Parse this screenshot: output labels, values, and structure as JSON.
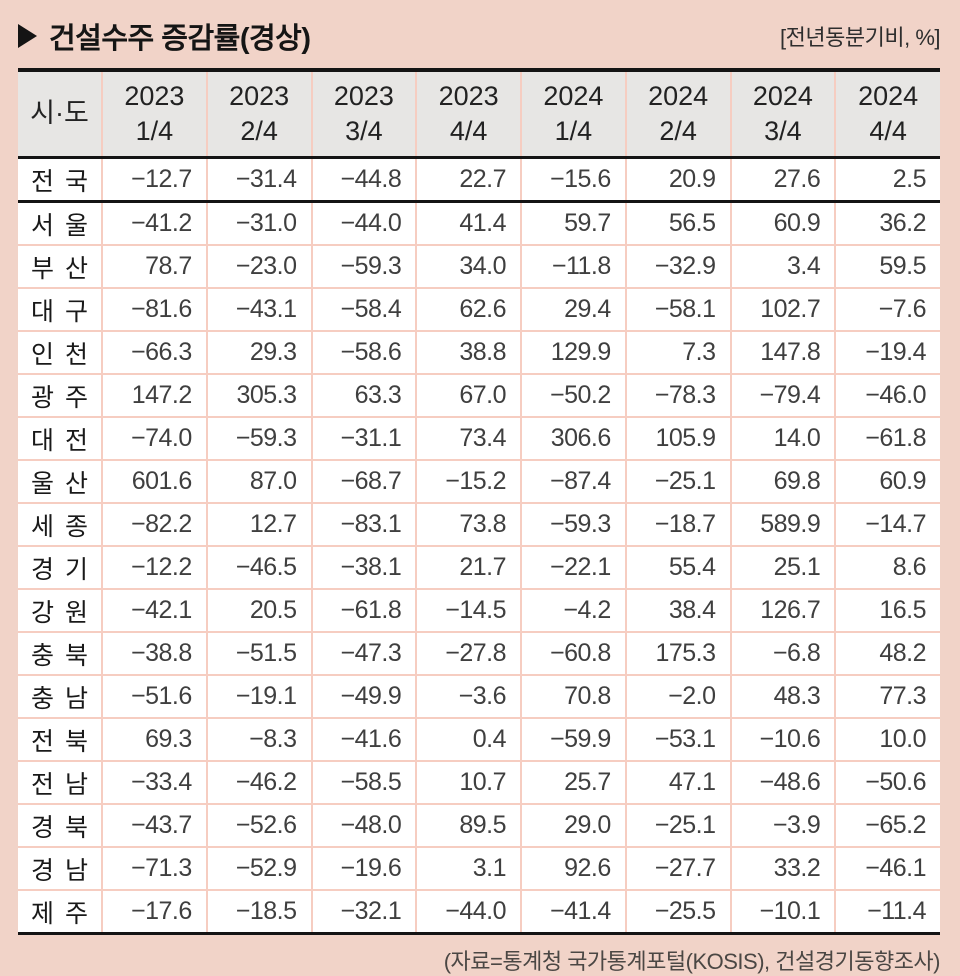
{
  "header": {
    "title": "건설수주 증감률(경상)",
    "unit_note": "[전년동분기비, %]",
    "icons": {
      "title_arrow": "filled-right-triangle"
    }
  },
  "table": {
    "corner_label": "시·도",
    "columns": [
      {
        "year": "2023",
        "quarter": "1/4"
      },
      {
        "year": "2023",
        "quarter": "2/4"
      },
      {
        "year": "2023",
        "quarter": "3/4"
      },
      {
        "year": "2023",
        "quarter": "4/4"
      },
      {
        "year": "2024",
        "quarter": "1/4"
      },
      {
        "year": "2024",
        "quarter": "2/4"
      },
      {
        "year": "2024",
        "quarter": "3/4"
      },
      {
        "year": "2024",
        "quarter": "4/4"
      }
    ],
    "rows": [
      {
        "region": "전국",
        "values": [
          "−12.7",
          "−31.4",
          "−44.8",
          "22.7",
          "−15.6",
          "20.9",
          "27.6",
          "2.5"
        ]
      },
      {
        "region": "서울",
        "values": [
          "−41.2",
          "−31.0",
          "−44.0",
          "41.4",
          "59.7",
          "56.5",
          "60.9",
          "36.2"
        ]
      },
      {
        "region": "부산",
        "values": [
          "78.7",
          "−23.0",
          "−59.3",
          "34.0",
          "−11.8",
          "−32.9",
          "3.4",
          "59.5"
        ]
      },
      {
        "region": "대구",
        "values": [
          "−81.6",
          "−43.1",
          "−58.4",
          "62.6",
          "29.4",
          "−58.1",
          "102.7",
          "−7.6"
        ]
      },
      {
        "region": "인천",
        "values": [
          "−66.3",
          "29.3",
          "−58.6",
          "38.8",
          "129.9",
          "7.3",
          "147.8",
          "−19.4"
        ]
      },
      {
        "region": "광주",
        "values": [
          "147.2",
          "305.3",
          "63.3",
          "67.0",
          "−50.2",
          "−78.3",
          "−79.4",
          "−46.0"
        ]
      },
      {
        "region": "대전",
        "values": [
          "−74.0",
          "−59.3",
          "−31.1",
          "73.4",
          "306.6",
          "105.9",
          "14.0",
          "−61.8"
        ]
      },
      {
        "region": "울산",
        "values": [
          "601.6",
          "87.0",
          "−68.7",
          "−15.2",
          "−87.4",
          "−25.1",
          "69.8",
          "60.9"
        ]
      },
      {
        "region": "세종",
        "values": [
          "−82.2",
          "12.7",
          "−83.1",
          "73.8",
          "−59.3",
          "−18.7",
          "589.9",
          "−14.7"
        ]
      },
      {
        "region": "경기",
        "values": [
          "−12.2",
          "−46.5",
          "−38.1",
          "21.7",
          "−22.1",
          "55.4",
          "25.1",
          "8.6"
        ]
      },
      {
        "region": "강원",
        "values": [
          "−42.1",
          "20.5",
          "−61.8",
          "−14.5",
          "−4.2",
          "38.4",
          "126.7",
          "16.5"
        ]
      },
      {
        "region": "충북",
        "values": [
          "−38.8",
          "−51.5",
          "−47.3",
          "−27.8",
          "−60.8",
          "175.3",
          "−6.8",
          "48.2"
        ]
      },
      {
        "region": "충남",
        "values": [
          "−51.6",
          "−19.1",
          "−49.9",
          "−3.6",
          "70.8",
          "−2.0",
          "48.3",
          "77.3"
        ]
      },
      {
        "region": "전북",
        "values": [
          "69.3",
          "−8.3",
          "−41.6",
          "0.4",
          "−59.9",
          "−53.1",
          "−10.6",
          "10.0"
        ]
      },
      {
        "region": "전남",
        "values": [
          "−33.4",
          "−46.2",
          "−58.5",
          "10.7",
          "25.7",
          "47.1",
          "−48.6",
          "−50.6"
        ]
      },
      {
        "region": "경북",
        "values": [
          "−43.7",
          "−52.6",
          "−48.0",
          "89.5",
          "29.0",
          "−25.1",
          "−3.9",
          "−65.2"
        ]
      },
      {
        "region": "경남",
        "values": [
          "−71.3",
          "−52.9",
          "−19.6",
          "3.1",
          "92.6",
          "−27.7",
          "33.2",
          "−46.1"
        ]
      },
      {
        "region": "제주",
        "values": [
          "−17.6",
          "−18.5",
          "−32.1",
          "−44.0",
          "−41.4",
          "−25.5",
          "−10.1",
          "−11.4"
        ]
      }
    ]
  },
  "footer": {
    "source": "(자료=통계청 국가통계포털(KOSIS), 건설경기동향조사)"
  },
  "colors": {
    "page_background": "#f1d3c8",
    "header_band": "#e7e6e4",
    "gridline_pink": "#f6cdc1",
    "rule_black": "#141414",
    "number_text": "#3f3f3f",
    "region_text": "#191919"
  },
  "chart_data": {
    "type": "table",
    "title": "건설수주 증감률(경상)",
    "unit": "전년동분기비, %",
    "categories": [
      "2023 1/4",
      "2023 2/4",
      "2023 3/4",
      "2023 4/4",
      "2024 1/4",
      "2024 2/4",
      "2024 3/4",
      "2024 4/4"
    ],
    "series": [
      {
        "name": "전국",
        "values": [
          -12.7,
          -31.4,
          -44.8,
          22.7,
          -15.6,
          20.9,
          27.6,
          2.5
        ]
      },
      {
        "name": "서울",
        "values": [
          -41.2,
          -31.0,
          -44.0,
          41.4,
          59.7,
          56.5,
          60.9,
          36.2
        ]
      },
      {
        "name": "부산",
        "values": [
          78.7,
          -23.0,
          -59.3,
          34.0,
          -11.8,
          -32.9,
          3.4,
          59.5
        ]
      },
      {
        "name": "대구",
        "values": [
          -81.6,
          -43.1,
          -58.4,
          62.6,
          29.4,
          -58.1,
          102.7,
          -7.6
        ]
      },
      {
        "name": "인천",
        "values": [
          -66.3,
          29.3,
          -58.6,
          38.8,
          129.9,
          7.3,
          147.8,
          -19.4
        ]
      },
      {
        "name": "광주",
        "values": [
          147.2,
          305.3,
          63.3,
          67.0,
          -50.2,
          -78.3,
          -79.4,
          -46.0
        ]
      },
      {
        "name": "대전",
        "values": [
          -74.0,
          -59.3,
          -31.1,
          73.4,
          306.6,
          105.9,
          14.0,
          -61.8
        ]
      },
      {
        "name": "울산",
        "values": [
          601.6,
          87.0,
          -68.7,
          -15.2,
          -87.4,
          -25.1,
          69.8,
          60.9
        ]
      },
      {
        "name": "세종",
        "values": [
          -82.2,
          12.7,
          -83.1,
          73.8,
          -59.3,
          -18.7,
          589.9,
          -14.7
        ]
      },
      {
        "name": "경기",
        "values": [
          -12.2,
          -46.5,
          -38.1,
          21.7,
          -22.1,
          55.4,
          25.1,
          8.6
        ]
      },
      {
        "name": "강원",
        "values": [
          -42.1,
          20.5,
          -61.8,
          -14.5,
          -4.2,
          38.4,
          126.7,
          16.5
        ]
      },
      {
        "name": "충북",
        "values": [
          -38.8,
          -51.5,
          -47.3,
          -27.8,
          -60.8,
          175.3,
          -6.8,
          48.2
        ]
      },
      {
        "name": "충남",
        "values": [
          -51.6,
          -19.1,
          -49.9,
          -3.6,
          70.8,
          -2.0,
          48.3,
          77.3
        ]
      },
      {
        "name": "전북",
        "values": [
          69.3,
          -8.3,
          -41.6,
          0.4,
          -59.9,
          -53.1,
          -10.6,
          10.0
        ]
      },
      {
        "name": "전남",
        "values": [
          -33.4,
          -46.2,
          -58.5,
          10.7,
          25.7,
          47.1,
          -48.6,
          -50.6
        ]
      },
      {
        "name": "경북",
        "values": [
          -43.7,
          -52.6,
          -48.0,
          89.5,
          29.0,
          -25.1,
          -3.9,
          -65.2
        ]
      },
      {
        "name": "경남",
        "values": [
          -71.3,
          -52.9,
          -19.6,
          3.1,
          92.6,
          -27.7,
          33.2,
          -46.1
        ]
      },
      {
        "name": "제주",
        "values": [
          -17.6,
          -18.5,
          -32.1,
          -44.0,
          -41.4,
          -25.5,
          -10.1,
          -11.4
        ]
      }
    ]
  }
}
